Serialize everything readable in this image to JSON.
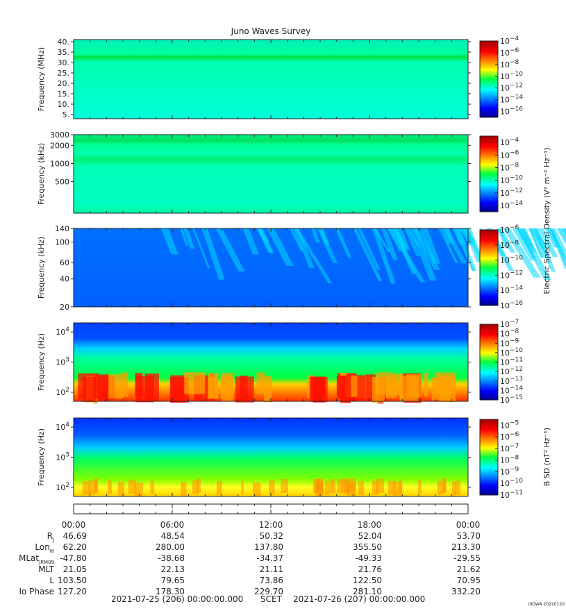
{
  "title": "Juno Waves Survey",
  "credit": "UIOWA 20220120",
  "chart_data": [
    {
      "type": "heatmap",
      "name": "panel-mhz",
      "ylabel": "Frequency (MHz)",
      "yscale": "linear",
      "ylim": [
        3,
        41
      ],
      "yticks": [
        {
          "v": 5,
          "label": "5."
        },
        {
          "v": 10,
          "label": "10."
        },
        {
          "v": 15,
          "label": "15."
        },
        {
          "v": 20,
          "label": "20."
        },
        {
          "v": 25,
          "label": "25."
        },
        {
          "v": 30,
          "label": "30."
        },
        {
          "v": 35,
          "label": "35."
        },
        {
          "v": 40,
          "label": "40."
        }
      ],
      "colorbar": {
        "min_exp": -17,
        "max_exp": -4,
        "labels": [
          -4,
          -6,
          -8,
          -10,
          -12,
          -14,
          -16
        ]
      }
    },
    {
      "type": "heatmap",
      "name": "panel-khz-high",
      "ylabel": "Frequency (kHz)",
      "yscale": "log",
      "ylim": [
        150,
        3000
      ],
      "yticks": [
        {
          "v": 500,
          "label": "500"
        },
        {
          "v": 1000,
          "label": "1000"
        },
        {
          "v": 2000,
          "label": "2000"
        },
        {
          "v": 3000,
          "label": "3000"
        }
      ],
      "colorbar": {
        "min_exp": -15,
        "max_exp": -3,
        "labels": [
          -4,
          -6,
          -8,
          -10,
          -12,
          -14
        ]
      }
    },
    {
      "type": "heatmap",
      "name": "panel-khz-low",
      "ylabel": "Frequency (kHz)",
      "yscale": "log",
      "ylim": [
        20,
        140
      ],
      "yticks": [
        {
          "v": 20,
          "label": "20"
        },
        {
          "v": 40,
          "label": "40"
        },
        {
          "v": 60,
          "label": "60"
        },
        {
          "v": 100,
          "label": "100"
        },
        {
          "v": 140,
          "label": "140"
        }
      ],
      "colorbar": {
        "min_exp": -16,
        "max_exp": -6,
        "labels": [
          -6,
          -8,
          -10,
          -12,
          -14,
          -16
        ]
      }
    },
    {
      "type": "heatmap",
      "name": "panel-hz-e",
      "ylabel": "Frequency (Hz)",
      "yscale": "log",
      "ylim": [
        50,
        20000
      ],
      "yticks": [
        {
          "v": 100,
          "label": "10",
          "sup": "2"
        },
        {
          "v": 1000,
          "label": "10",
          "sup": "3"
        },
        {
          "v": 10000,
          "label": "10",
          "sup": "4"
        }
      ],
      "colorbar": {
        "min_exp": -15,
        "max_exp": -7,
        "labels": [
          -7,
          -8,
          -9,
          -10,
          -11,
          -12,
          -13,
          -14,
          -15
        ]
      }
    },
    {
      "type": "heatmap",
      "name": "panel-hz-b",
      "ylabel": "Frequency (Hz)",
      "yscale": "log",
      "ylim": [
        50,
        20000
      ],
      "yticks": [
        {
          "v": 100,
          "label": "10",
          "sup": "2"
        },
        {
          "v": 1000,
          "label": "10",
          "sup": "3"
        },
        {
          "v": 10000,
          "label": "10",
          "sup": "4"
        }
      ],
      "colorbar": {
        "min_exp": -11,
        "max_exp": -4.5,
        "labels": [
          -5,
          -6,
          -7,
          -8,
          -9,
          -10,
          -11
        ]
      }
    }
  ],
  "colorbar_labels": {
    "electric": "Electric Spectral Density (V² m⁻² Hz⁻¹)",
    "magnetic": "B SD (nT² Hz⁻¹)"
  },
  "time_axis": {
    "ticks": [
      "00:00",
      "06:00",
      "12:00",
      "18:00",
      "00:00"
    ]
  },
  "ephemeris": [
    {
      "label": "R",
      "sub": "J",
      "values": [
        "46.69",
        "48.54",
        "50.32",
        "52.04",
        "53.70"
      ]
    },
    {
      "label": "Lon",
      "sub": "III",
      "values": [
        "62.20",
        "280.00",
        "137.80",
        "355.50",
        "213.30"
      ]
    },
    {
      "label": "MLat",
      "sub": "JRM09",
      "values": [
        "-47.80",
        "-38.68",
        "-34.37",
        "-49.33",
        "-29.55"
      ]
    },
    {
      "label": "MLT",
      "sub": "",
      "values": [
        "21.05",
        "22.13",
        "21.11",
        "21.76",
        "21.62"
      ]
    },
    {
      "label": "L",
      "sub": "",
      "values": [
        "103.50",
        "79.65",
        "73.86",
        "122.50",
        "70.95"
      ]
    },
    {
      "label": "Io Phase",
      "sub": "",
      "values": [
        "127.20",
        "178.30",
        "229.70",
        "281.10",
        "332.20"
      ]
    }
  ],
  "footer": {
    "start": "2021-07-25 (206) 00:00:00.000",
    "scet": "SCET",
    "end": "2021-07-26 (207) 00:00:00.000"
  }
}
